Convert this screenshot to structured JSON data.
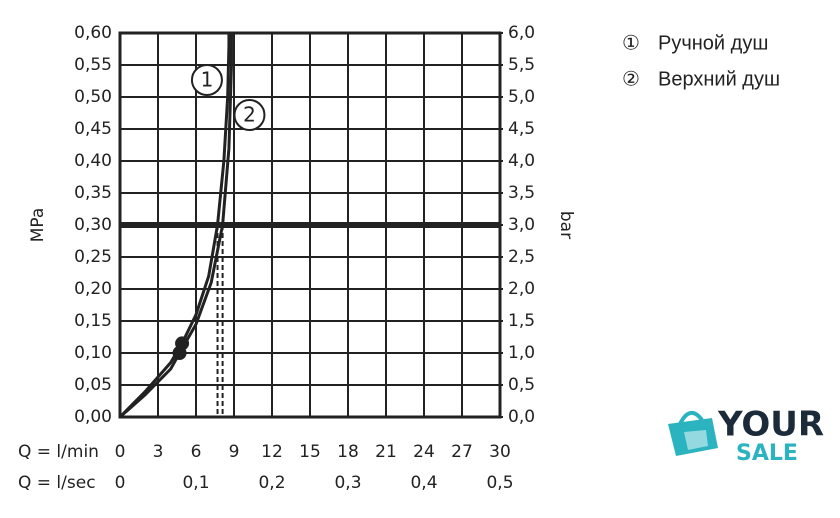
{
  "chart_data": {
    "type": "line",
    "ylabel": "MPa",
    "y2label": "bar",
    "xlabel": "Q = l/min",
    "x2label": "Q = l/sec",
    "xlim": [
      0,
      30
    ],
    "xticks": [
      0,
      3,
      6,
      9,
      12,
      15,
      18,
      21,
      24,
      27,
      30
    ],
    "x2lim": [
      0,
      0.5
    ],
    "x2ticks": [
      0,
      {
        "value": 0.1,
        "label": "0,1"
      },
      {
        "value": 0.2,
        "label": "0,2"
      },
      {
        "value": 0.3,
        "label": "0,3"
      },
      {
        "value": 0.4,
        "label": "0,4"
      },
      {
        "value": 0.5,
        "label": "0,5"
      }
    ],
    "ylim": [
      0,
      0.6
    ],
    "yticks": [
      {
        "value": 0,
        "label": "0,00"
      },
      {
        "value": 0.05,
        "label": "0,05"
      },
      {
        "value": 0.1,
        "label": "0,10"
      },
      {
        "value": 0.15,
        "label": "0,15"
      },
      {
        "value": 0.2,
        "label": "0,20"
      },
      {
        "value": 0.25,
        "label": "0,25"
      },
      {
        "value": 0.3,
        "label": "0,30"
      },
      {
        "value": 0.35,
        "label": "0,35"
      },
      {
        "value": 0.4,
        "label": "0,40"
      },
      {
        "value": 0.45,
        "label": "0,45"
      },
      {
        "value": 0.5,
        "label": "0,50"
      },
      {
        "value": 0.55,
        "label": "0,55"
      },
      {
        "value": 0.6,
        "label": "0,60"
      }
    ],
    "y2lim": [
      0,
      6
    ],
    "y2ticks": [
      {
        "value": 0,
        "label": "0,0"
      },
      {
        "value": 0.5,
        "label": "0,5"
      },
      {
        "value": 1,
        "label": "1,0"
      },
      {
        "value": 1.5,
        "label": "1,5"
      },
      {
        "value": 2,
        "label": "2,0"
      },
      {
        "value": 2.5,
        "label": "2,5"
      },
      {
        "value": 3,
        "label": "3,0"
      },
      {
        "value": 3.5,
        "label": "3,5"
      },
      {
        "value": 4,
        "label": "4,0"
      },
      {
        "value": 4.5,
        "label": "4,5"
      },
      {
        "value": 5,
        "label": "5,0"
      },
      {
        "value": 5.5,
        "label": "5,5"
      },
      {
        "value": 6,
        "label": "6,0"
      }
    ],
    "grid": true,
    "reference_y": 0.3,
    "markers_x": [
      7.7,
      8.1
    ],
    "series": [
      {
        "name": "Ручной душ",
        "symbol": "①",
        "label": "1",
        "color": "#222222",
        "x": [
          0,
          2,
          4,
          4.9,
          6,
          7,
          7.7,
          8.2,
          8.5,
          8.6,
          8.6
        ],
        "values": [
          0,
          0.04,
          0.085,
          0.115,
          0.16,
          0.22,
          0.3,
          0.4,
          0.5,
          0.58,
          0.6
        ],
        "dot_index": 3
      },
      {
        "name": "Верхний душ",
        "symbol": "②",
        "label": "2",
        "color": "#222222",
        "x": [
          0,
          2,
          4,
          4.7,
          6,
          7.2,
          8.1,
          8.6,
          8.8,
          8.8
        ],
        "values": [
          0,
          0.035,
          0.075,
          0.1,
          0.145,
          0.21,
          0.3,
          0.42,
          0.55,
          0.6
        ],
        "dot_index": 3
      }
    ]
  },
  "logo": {
    "line1": "YOUR",
    "line2": "SALE"
  }
}
